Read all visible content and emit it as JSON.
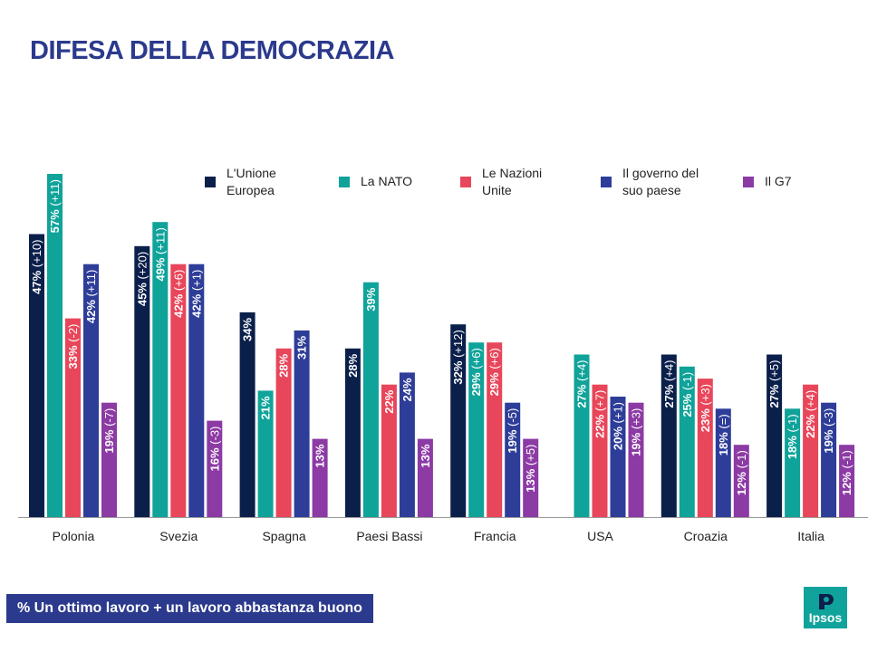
{
  "header": {
    "title": "DIFESA DELLA DEMOCRAZIA"
  },
  "footer": {
    "note": "% Un ottimo lavoro + un lavoro abbastanza buono",
    "logo_text": "Ipsos"
  },
  "chart_data": {
    "type": "bar",
    "title": "DIFESA DELLA DEMOCRAZIA",
    "ylabel": "% Un ottimo lavoro + un lavoro abbastanza buono",
    "ylim": [
      0,
      60
    ],
    "grid": false,
    "legend_position": "top",
    "categories": [
      "Polonia",
      "Svezia",
      "Spagna",
      "Paesi Bassi",
      "Francia",
      "USA",
      "Croazia",
      "Italia"
    ],
    "series": [
      {
        "name": "L'Unione\nEuropea",
        "color": "#0b1f4b",
        "values": [
          47,
          45,
          34,
          28,
          32,
          null,
          27,
          27
        ],
        "labels": [
          "47%",
          "45%",
          "34%",
          "28%",
          "32%",
          "",
          "27%",
          "27%"
        ],
        "changes": [
          "(+10)",
          "(+20)",
          "",
          "",
          "(+12)",
          "",
          "(+4)",
          "(+5)"
        ]
      },
      {
        "name": "La NATO",
        "color": "#0fa39a",
        "values": [
          57,
          49,
          21,
          39,
          29,
          27,
          25,
          18
        ],
        "labels": [
          "57%",
          "49%",
          "21%",
          "39%",
          "29%",
          "27%",
          "25%",
          "18%"
        ],
        "changes": [
          "(+11)",
          "(+11)",
          "",
          "",
          "(+6)",
          "(+4)",
          "(-1)",
          "(-1)"
        ]
      },
      {
        "name": "Le Nazioni\nUnite",
        "color": "#e8465a",
        "values": [
          33,
          42,
          28,
          22,
          29,
          22,
          23,
          22
        ],
        "labels": [
          "33%",
          "42%",
          "28%",
          "22%",
          "29%",
          "22%",
          "23%",
          "22%"
        ],
        "changes": [
          "(-2)",
          "(+6)",
          "",
          "",
          "(+6)",
          "(+7)",
          "(+3)",
          "(+4)"
        ]
      },
      {
        "name": "Il governo del\nsuo paese",
        "color": "#2e3d98",
        "values": [
          42,
          42,
          31,
          24,
          19,
          20,
          18,
          19
        ],
        "labels": [
          "42%",
          "42%",
          "31%",
          "24%",
          "19%",
          "20%",
          "18%",
          "19%"
        ],
        "changes": [
          "(+11)",
          "(+1)",
          "",
          "",
          "(-5)",
          "(+1)",
          "(=)",
          "(-3)"
        ]
      },
      {
        "name": "Il G7",
        "color": "#8c3aa4",
        "values": [
          19,
          16,
          13,
          13,
          13,
          19,
          12,
          12
        ],
        "labels": [
          "19%",
          "16%",
          "13%",
          "13%",
          "13%",
          "19%",
          "12%",
          "12%"
        ],
        "changes": [
          "(-7)",
          "(-3)",
          "",
          "",
          "(+5)",
          "(+3)",
          "(-1)",
          "(-1)"
        ]
      }
    ]
  }
}
